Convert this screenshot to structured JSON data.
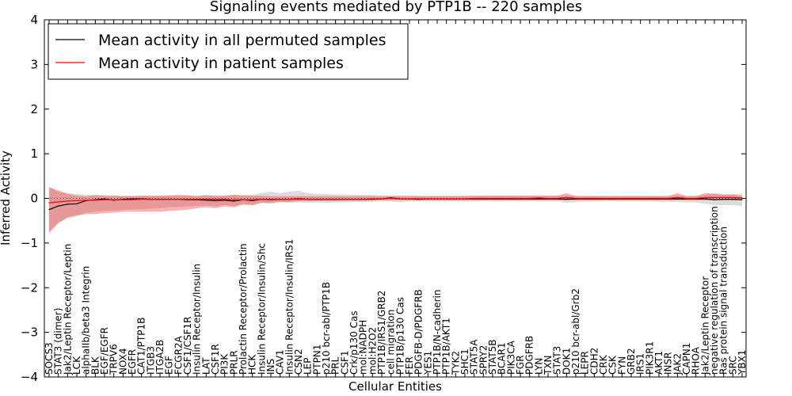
{
  "chart_data": {
    "type": "line",
    "title": "Signaling events mediated by PTP1B -- 220 samples",
    "xlabel": "Cellular Entities",
    "ylabel": "Inferred Activity",
    "ylim": [
      -4,
      4
    ],
    "yticks": [
      "4",
      "3",
      "2",
      "1",
      "0",
      "−1",
      "−2",
      "−3",
      "−4"
    ],
    "ytick_values": [
      4,
      3,
      2,
      1,
      0,
      -1,
      -2,
      -3,
      -4
    ],
    "grid": false,
    "legend_position": "top-left",
    "legend": [
      {
        "label": "Mean activity in all permuted samples",
        "color": "#000000"
      },
      {
        "label": "Mean activity in patient samples",
        "color": "#ff0000"
      }
    ],
    "categories": [
      "SOCS3",
      "STAT3 (dimer)",
      "Jak2/Leptin Receptor/Leptin",
      "LCK",
      "alphaIIb/beta3 Integrin",
      "BLK",
      "EGF/EGFR",
      "TRPV6",
      "NOX4",
      "EGFR",
      "CAT1/PTP1B",
      "ITGB3",
      "ITGA2B",
      "EGF",
      "FCGR2A",
      "CSF1/CSF1R",
      "Insulin Receptor/Insulin",
      "LAT",
      "CSF1R",
      "PI3K",
      "PRLR",
      "Prolactin Receptor/Prolactin",
      "HCK",
      "Insulin Receptor/Insulin/Shc",
      "INS",
      "CAV1",
      "Insulin Receptor/Insulin/IRS1",
      "CSN2",
      "LEP",
      "PTPN1",
      "p210 bcr-abl/PTP1B",
      "PRL",
      "CSF1",
      "Crk/p130 Cas",
      "mol:NADPH",
      "mol:H2O2",
      "PTP1B/IRS1/GRB2",
      "cell migration",
      "PTP1B/p130 Cas",
      "FER",
      "PDGFB-D/PDGFRB",
      "YES1",
      "PTP1B/N-cadherin",
      "PTP1B/AKT1",
      "TYK2",
      "SHC1",
      "STAT5A",
      "SPRY2",
      "STAT5B",
      "BCAR1",
      "PIK3CA",
      "FGR",
      "PDGFRB",
      "LYN",
      "TXN",
      "STAT3",
      "DOK1",
      "p210 bcr-abl/Grb2",
      "LEPR",
      "CDH2",
      "CRK",
      "CSK",
      "FYN",
      "GRB2",
      "IRS1",
      "PIK3R1",
      "AKT1",
      "INSR",
      "JAK2",
      "CAPN1",
      "RHOA",
      "Jak2/Leptin Receptor",
      "negative regulation of transcription",
      "Ras protein signal transduction",
      "SRC",
      "YBX1"
    ],
    "series": [
      {
        "name": "Mean activity in all permuted samples",
        "color": "#000000",
        "values": [
          -0.25,
          -0.17,
          -0.13,
          -0.12,
          -0.05,
          -0.03,
          -0.01,
          -0.04,
          -0.02,
          -0.01,
          -0.01,
          -0.02,
          -0.02,
          -0.02,
          -0.02,
          -0.03,
          -0.03,
          -0.04,
          -0.05,
          -0.04,
          -0.06,
          -0.03,
          -0.05,
          -0.02,
          -0.03,
          -0.02,
          -0.02,
          -0.01,
          -0.02,
          -0.02,
          -0.02,
          -0.02,
          -0.02,
          -0.02,
          -0.02,
          -0.02,
          -0.01,
          0.01,
          -0.01,
          -0.01,
          -0.02,
          -0.01,
          -0.01,
          -0.01,
          -0.01,
          -0.01,
          -0.01,
          -0.01,
          -0.01,
          -0.01,
          -0.01,
          -0.01,
          -0.01,
          -0.01,
          -0.01,
          -0.01,
          -0.02,
          -0.01,
          -0.01,
          -0.01,
          -0.01,
          -0.01,
          -0.01,
          -0.01,
          -0.01,
          -0.01,
          -0.01,
          -0.01,
          -0.01,
          -0.01,
          -0.01,
          -0.01,
          -0.03,
          -0.02,
          -0.02,
          -0.03
        ],
        "band_lower": [
          -0.75,
          -0.55,
          -0.45,
          -0.4,
          -0.32,
          -0.3,
          -0.28,
          -0.27,
          -0.26,
          -0.25,
          -0.24,
          -0.23,
          -0.22,
          -0.2,
          -0.19,
          -0.18,
          -0.17,
          -0.16,
          -0.18,
          -0.15,
          -0.17,
          -0.13,
          -0.15,
          -0.1,
          -0.12,
          -0.08,
          -0.1,
          -0.09,
          -0.1,
          -0.09,
          -0.1,
          -0.09,
          -0.09,
          -0.08,
          -0.08,
          -0.08,
          -0.07,
          -0.07,
          -0.08,
          -0.07,
          -0.07,
          -0.07,
          -0.07,
          -0.07,
          -0.07,
          -0.07,
          -0.07,
          -0.06,
          -0.07,
          -0.07,
          -0.06,
          -0.07,
          -0.06,
          -0.07,
          -0.07,
          -0.07,
          -0.1,
          -0.08,
          -0.07,
          -0.07,
          -0.07,
          -0.06,
          -0.07,
          -0.07,
          -0.07,
          -0.07,
          -0.08,
          -0.08,
          -0.08,
          -0.09,
          -0.09,
          -0.12,
          -0.15,
          -0.15,
          -0.15,
          -0.17
        ],
        "band_upper": [
          0.25,
          0.15,
          0.12,
          0.1,
          0.08,
          0.08,
          0.07,
          0.06,
          0.06,
          0.06,
          0.06,
          0.06,
          0.06,
          0.06,
          0.06,
          0.06,
          0.06,
          0.06,
          0.06,
          0.06,
          0.08,
          0.08,
          0.08,
          0.12,
          0.15,
          0.12,
          0.15,
          0.17,
          0.12,
          0.1,
          0.1,
          0.09,
          0.09,
          0.08,
          0.08,
          0.08,
          0.07,
          0.07,
          0.07,
          0.07,
          0.06,
          0.06,
          0.06,
          0.06,
          0.06,
          0.06,
          0.06,
          0.06,
          0.06,
          0.06,
          0.06,
          0.06,
          0.06,
          0.06,
          0.06,
          0.06,
          0.06,
          0.06,
          0.06,
          0.06,
          0.06,
          0.06,
          0.06,
          0.06,
          0.06,
          0.06,
          0.06,
          0.06,
          0.06,
          0.06,
          0.06,
          0.08,
          0.12,
          0.1,
          0.1,
          0.1
        ]
      },
      {
        "name": "Mean activity in patient samples",
        "color": "#ff0000",
        "values": [
          -0.1,
          -0.08,
          -0.06,
          -0.05,
          -0.04,
          -0.04,
          -0.03,
          -0.03,
          -0.03,
          -0.03,
          -0.02,
          -0.02,
          -0.02,
          -0.02,
          -0.02,
          -0.02,
          -0.02,
          -0.02,
          -0.02,
          -0.02,
          -0.03,
          -0.03,
          -0.03,
          -0.02,
          -0.02,
          -0.02,
          -0.02,
          -0.02,
          -0.02,
          -0.02,
          -0.02,
          -0.02,
          -0.02,
          -0.02,
          -0.02,
          -0.01,
          -0.01,
          0.0,
          -0.01,
          -0.01,
          -0.01,
          -0.01,
          -0.01,
          -0.01,
          -0.01,
          -0.01,
          0.0,
          0.0,
          0.0,
          0.0,
          0.0,
          0.0,
          0.0,
          0.01,
          0.0,
          0.0,
          0.02,
          0.0,
          0.0,
          0.0,
          0.0,
          0.0,
          0.0,
          0.0,
          0.0,
          0.0,
          0.0,
          0.0,
          0.02,
          0.0,
          0.0,
          0.02,
          0.02,
          0.02,
          0.02,
          0.01
        ],
        "band_lower": [
          -0.78,
          -0.55,
          -0.42,
          -0.38,
          -0.35,
          -0.35,
          -0.33,
          -0.32,
          -0.3,
          -0.3,
          -0.3,
          -0.3,
          -0.3,
          -0.28,
          -0.27,
          -0.25,
          -0.22,
          -0.2,
          -0.22,
          -0.18,
          -0.2,
          -0.14,
          -0.15,
          -0.1,
          -0.1,
          -0.08,
          -0.08,
          -0.06,
          -0.06,
          -0.06,
          -0.06,
          -0.06,
          -0.05,
          -0.05,
          -0.05,
          -0.04,
          -0.04,
          -0.04,
          -0.04,
          -0.04,
          -0.04,
          -0.04,
          -0.04,
          -0.04,
          -0.04,
          -0.04,
          -0.04,
          -0.04,
          -0.04,
          -0.04,
          -0.04,
          -0.04,
          -0.04,
          -0.04,
          -0.04,
          -0.04,
          -0.04,
          -0.04,
          -0.04,
          -0.04,
          -0.04,
          -0.04,
          -0.04,
          -0.04,
          -0.04,
          -0.04,
          -0.04,
          -0.04,
          -0.04,
          -0.04,
          -0.04,
          -0.04,
          -0.04,
          -0.04,
          -0.04,
          -0.04
        ],
        "band_upper": [
          0.25,
          0.18,
          0.1,
          0.06,
          0.05,
          0.07,
          0.06,
          0.06,
          0.05,
          0.05,
          0.06,
          0.06,
          0.06,
          0.07,
          0.08,
          0.07,
          0.05,
          0.08,
          0.06,
          0.06,
          0.08,
          0.06,
          0.06,
          0.06,
          0.05,
          0.05,
          0.05,
          0.05,
          0.05,
          0.05,
          0.05,
          0.05,
          0.05,
          0.05,
          0.05,
          0.05,
          0.05,
          0.05,
          0.05,
          0.05,
          0.05,
          0.05,
          0.05,
          0.05,
          0.05,
          0.05,
          0.06,
          0.06,
          0.06,
          0.06,
          0.06,
          0.06,
          0.06,
          0.06,
          0.06,
          0.06,
          0.12,
          0.05,
          0.05,
          0.05,
          0.05,
          0.05,
          0.05,
          0.05,
          0.05,
          0.05,
          0.05,
          0.05,
          0.12,
          0.05,
          0.05,
          0.12,
          0.1,
          0.08,
          0.08,
          0.06
        ]
      }
    ]
  }
}
